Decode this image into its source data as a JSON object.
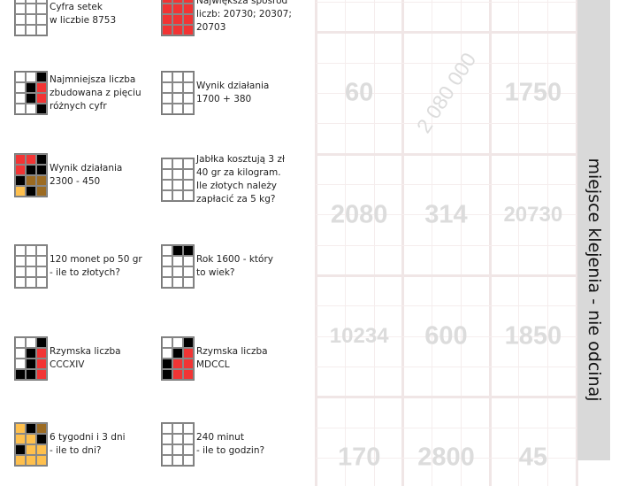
{
  "colors": {
    "w": "#ffffff",
    "k": "#000000",
    "r": "#f23434",
    "b": "#9c6b22",
    "o": "#ffc04d",
    "strip": "#d9d9d9",
    "answer": "#dcdcdc"
  },
  "puzzles": [
    {
      "text": "Cyfra setek\nw liczbie 8753",
      "pattern": [
        "www",
        "www",
        "www",
        "www"
      ]
    },
    {
      "text": "Największa spośród\nliczb: 20730; 20307;\n20703",
      "pattern": [
        "rrr",
        "rrr",
        "rrr",
        "rrr"
      ]
    },
    {
      "text": "Najmniejsza liczba\nzbudowana z pięciu\nróżnych cyfr",
      "pattern": [
        "wwk",
        "wkr",
        "wkr",
        "wwk"
      ]
    },
    {
      "text": "Wynik działania\n1700 + 380",
      "pattern": [
        "www",
        "www",
        "www",
        "www"
      ]
    },
    {
      "text": "Wynik działania\n2300 - 450",
      "pattern": [
        "rrk",
        "rkk",
        "kbb",
        "okb"
      ]
    },
    {
      "text": "Jabłka kosztują 3 zł\n40 gr za kilogram.\nIle złotych należy\nzapłacić za 5 kg?",
      "pattern": [
        "www",
        "www",
        "www",
        "www"
      ]
    },
    {
      "text": "120 monet po 50 gr\n- ile to złotych?",
      "pattern": [
        "www",
        "www",
        "www",
        "www"
      ]
    },
    {
      "text": "Rok 1600 - który\nto wiek?",
      "pattern": [
        "wkk",
        "www",
        "www",
        "www"
      ]
    },
    {
      "text": "Rzymska liczba\nCCCXIV",
      "pattern": [
        "wwk",
        "wkr",
        "wkr",
        "kkr"
      ]
    },
    {
      "text": "Rzymska liczba\nMDCCL",
      "pattern": [
        "wwk",
        "wkr",
        "krr",
        "krr"
      ]
    },
    {
      "text": "6 tygodni i 3 dni\n- ile to dni?",
      "pattern": [
        "okb",
        "ook",
        "koo",
        "ooo"
      ]
    },
    {
      "text": "240 minut\n- ile to godzin?",
      "pattern": [
        "www",
        "www",
        "www",
        "www"
      ]
    }
  ],
  "answers": [
    [
      "60",
      "2 080 000",
      "1750"
    ],
    [
      "2080",
      "314",
      "20730"
    ],
    [
      "10234",
      "600",
      "1850"
    ],
    [
      "170",
      "2800",
      "45"
    ]
  ],
  "strip_label": "miejsce klejenia - nie odcinaj"
}
